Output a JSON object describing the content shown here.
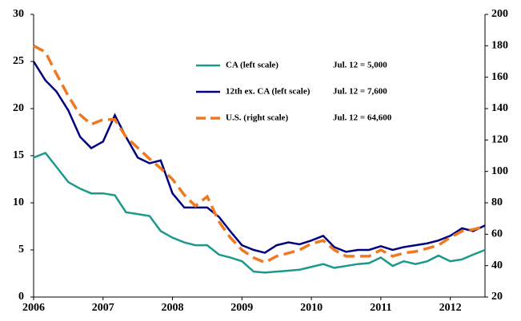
{
  "chart_data": {
    "type": "line",
    "x": [
      2006,
      2006.17,
      2006.33,
      2006.5,
      2006.67,
      2006.83,
      2007,
      2007.17,
      2007.33,
      2007.5,
      2007.67,
      2007.83,
      2008,
      2008.17,
      2008.33,
      2008.5,
      2008.67,
      2008.83,
      2009,
      2009.17,
      2009.33,
      2009.5,
      2009.67,
      2009.83,
      2010,
      2010.17,
      2010.33,
      2010.5,
      2010.67,
      2010.83,
      2011,
      2011.17,
      2011.33,
      2011.5,
      2011.67,
      2011.83,
      2012,
      2012.17,
      2012.33,
      2012.5
    ],
    "xlim": [
      2006,
      2012.5
    ],
    "xticks": [
      2006,
      2007,
      2008,
      2009,
      2010,
      2011,
      2012
    ],
    "ylim": [
      0,
      30
    ],
    "yticks": [
      0,
      5,
      10,
      15,
      20,
      25,
      30
    ],
    "y2lim": [
      20,
      200
    ],
    "y2ticks": [
      20,
      40,
      60,
      80,
      100,
      120,
      140,
      160,
      180,
      200
    ],
    "series": [
      {
        "name": "CA (left scale)",
        "note": "Jul. 12 = 5,000",
        "color": "#1a9a8a",
        "dash": false,
        "values": [
          14.8,
          15.3,
          13.8,
          12.2,
          11.5,
          11.0,
          11.0,
          10.8,
          9.0,
          8.8,
          8.6,
          7.0,
          6.3,
          5.8,
          5.5,
          5.5,
          4.5,
          4.2,
          3.8,
          2.7,
          2.6,
          2.7,
          2.8,
          2.9,
          3.2,
          3.5,
          3.1,
          3.3,
          3.5,
          3.6,
          4.2,
          3.3,
          3.8,
          3.5,
          3.8,
          4.4,
          3.8,
          4.0,
          4.5,
          5.0
        ]
      },
      {
        "name": "12th ex. CA (left scale)",
        "note": "Jul. 12 = 7,600",
        "color": "#000080",
        "dash": false,
        "values": [
          25.0,
          23.0,
          21.8,
          19.8,
          17.0,
          15.8,
          16.5,
          19.3,
          17.0,
          14.8,
          14.2,
          14.5,
          11.0,
          9.5,
          9.5,
          9.5,
          8.5,
          7.0,
          5.5,
          5.0,
          4.7,
          5.5,
          5.8,
          5.6,
          6.0,
          6.5,
          5.3,
          4.8,
          5.0,
          5.0,
          5.4,
          5.0,
          5.3,
          5.5,
          5.7,
          6.0,
          6.5,
          7.3,
          7.0,
          7.6
        ]
      },
      {
        "name": "U.S. (right scale)",
        "note": "Jul. 12 = 64,600",
        "color": "#f07820",
        "dash": true,
        "axis": "y2",
        "values": [
          180,
          176,
          162,
          148,
          136,
          130,
          133,
          133,
          122,
          115,
          108,
          102,
          95,
          85,
          78,
          84,
          68,
          58,
          50,
          45,
          42,
          46,
          48,
          50,
          54,
          56,
          50,
          46,
          46,
          46,
          50,
          46,
          48,
          49,
          51,
          53,
          58,
          62,
          63,
          65
        ]
      }
    ]
  }
}
